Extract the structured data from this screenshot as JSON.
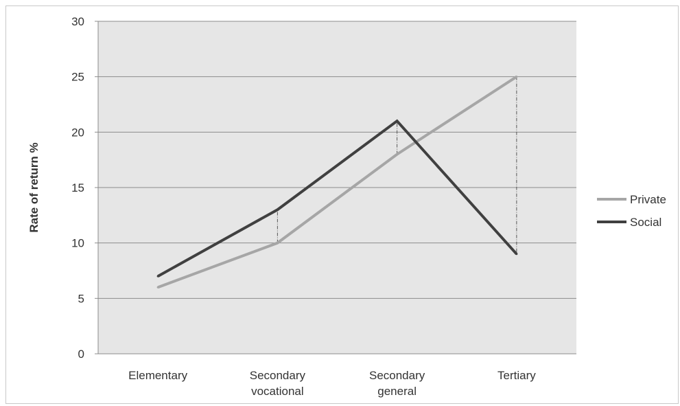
{
  "chart_data": {
    "type": "line",
    "title": "",
    "xlabel": "",
    "ylabel": "Rate of return %",
    "ylim": [
      0,
      30
    ],
    "yticks": [
      0,
      5,
      10,
      15,
      20,
      25,
      30
    ],
    "categories": [
      [
        "Elementary"
      ],
      [
        "Secondary",
        "vocational"
      ],
      [
        "Secondary",
        "general"
      ],
      [
        "Tertiary"
      ]
    ],
    "series": [
      {
        "name": "Private",
        "values": [
          6,
          10,
          18,
          25
        ],
        "color": "#a6a6a6"
      },
      {
        "name": "Social",
        "values": [
          7,
          13,
          21,
          9
        ],
        "color": "#404040"
      }
    ],
    "grid": true,
    "plot_background": "#e6e6e6",
    "legend_position": "right",
    "drop_lines": true
  }
}
